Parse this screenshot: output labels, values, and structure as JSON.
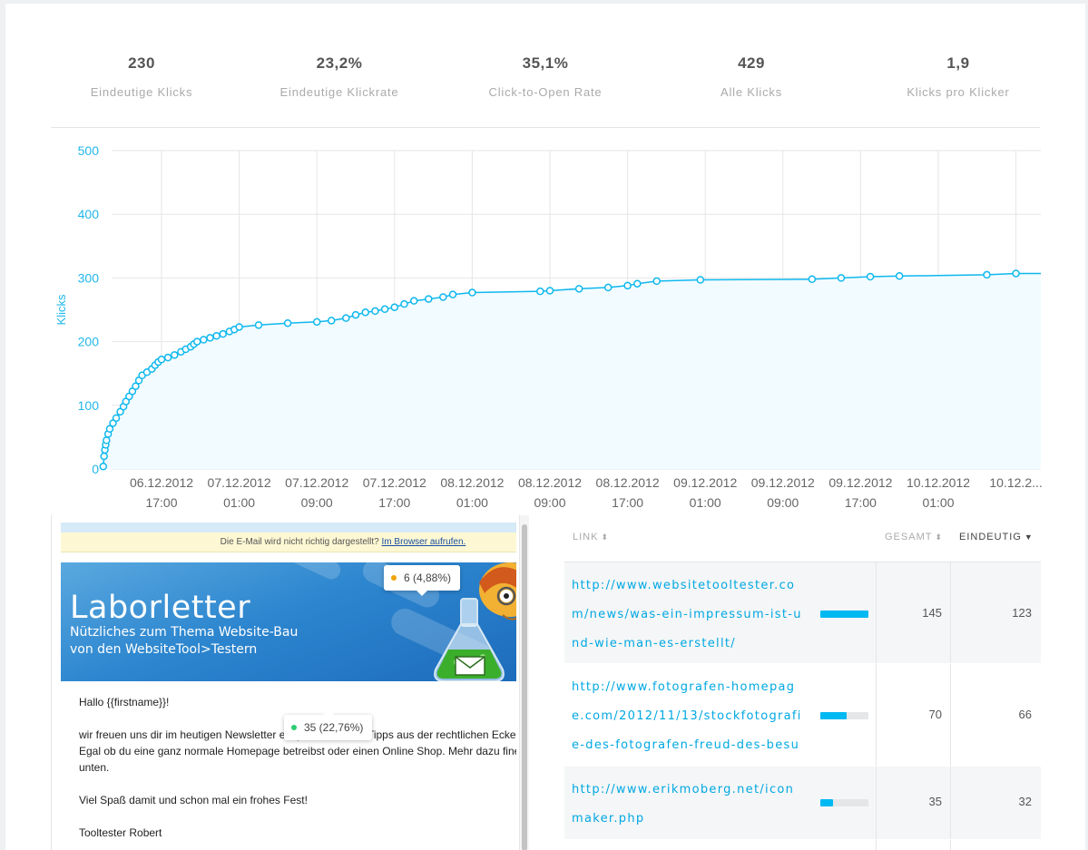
{
  "stats": [
    {
      "value": "230",
      "label": "Eindeutige Klicks"
    },
    {
      "value": "23,2%",
      "label": "Eindeutige Klickrate"
    },
    {
      "value": "35,1%",
      "label": "Click-to-Open Rate"
    },
    {
      "value": "429",
      "label": "Alle Klicks"
    },
    {
      "value": "1,9",
      "label": "Klicks pro Klicker"
    }
  ],
  "chart_data": {
    "type": "area",
    "ylabel": "Klicks",
    "ylim": [
      0,
      500
    ],
    "yticks": [
      0,
      100,
      200,
      300,
      400,
      500
    ],
    "x_start": "06.12.2012 11:00",
    "xticks": [
      {
        "date": "06.12.2012",
        "time": "17:00"
      },
      {
        "date": "07.12.2012",
        "time": "01:00"
      },
      {
        "date": "07.12.2012",
        "time": "09:00"
      },
      {
        "date": "07.12.2012",
        "time": "17:00"
      },
      {
        "date": "08.12.2012",
        "time": "01:00"
      },
      {
        "date": "08.12.2012",
        "time": "09:00"
      },
      {
        "date": "08.12.2012",
        "time": "17:00"
      },
      {
        "date": "09.12.2012",
        "time": "01:00"
      },
      {
        "date": "09.12.2012",
        "time": "09:00"
      },
      {
        "date": "09.12.2012",
        "time": "17:00"
      },
      {
        "date": "10.12.2012",
        "time": "01:00"
      },
      {
        "date": "10.12.2...",
        "time": ""
      }
    ],
    "series": [
      {
        "points": [
          [
            "06.12.2012 11:00",
            4
          ],
          [
            "06.12.2012 11:05",
            20
          ],
          [
            "06.12.2012 11:10",
            30
          ],
          [
            "06.12.2012 11:15",
            38
          ],
          [
            "06.12.2012 11:20",
            45
          ],
          [
            "06.12.2012 11:30",
            55
          ],
          [
            "06.12.2012 11:40",
            63
          ],
          [
            "06.12.2012 12:00",
            72
          ],
          [
            "06.12.2012 12:20",
            80
          ],
          [
            "06.12.2012 12:45",
            90
          ],
          [
            "06.12.2012 13:05",
            98
          ],
          [
            "06.12.2012 13:20",
            106
          ],
          [
            "06.12.2012 13:40",
            114
          ],
          [
            "06.12.2012 14:00",
            122
          ],
          [
            "06.12.2012 14:20",
            130
          ],
          [
            "06.12.2012 14:40",
            139
          ],
          [
            "06.12.2012 15:00",
            147
          ],
          [
            "06.12.2012 15:30",
            152
          ],
          [
            "06.12.2012 16:00",
            157
          ],
          [
            "06.12.2012 16:20",
            163
          ],
          [
            "06.12.2012 16:40",
            168
          ],
          [
            "06.12.2012 17:00",
            172
          ],
          [
            "06.12.2012 17:40",
            175
          ],
          [
            "06.12.2012 18:20",
            179
          ],
          [
            "06.12.2012 19:00",
            184
          ],
          [
            "06.12.2012 19:30",
            188
          ],
          [
            "06.12.2012 20:00",
            192
          ],
          [
            "06.12.2012 20:20",
            196
          ],
          [
            "06.12.2012 20:40",
            200
          ],
          [
            "06.12.2012 21:20",
            203
          ],
          [
            "06.12.2012 22:00",
            206
          ],
          [
            "06.12.2012 22:40",
            209
          ],
          [
            "06.12.2012 23:20",
            212
          ],
          [
            "07.12.2012 00:00",
            216
          ],
          [
            "07.12.2012 00:30",
            219
          ],
          [
            "07.12.2012 01:00",
            223
          ],
          [
            "07.12.2012 03:00",
            226
          ],
          [
            "07.12.2012 06:00",
            229
          ],
          [
            "07.12.2012 09:00",
            231
          ],
          [
            "07.12.2012 10:30",
            233
          ],
          [
            "07.12.2012 12:00",
            237
          ],
          [
            "07.12.2012 13:00",
            242
          ],
          [
            "07.12.2012 14:00",
            246
          ],
          [
            "07.12.2012 15:00",
            248
          ],
          [
            "07.12.2012 16:00",
            251
          ],
          [
            "07.12.2012 17:00",
            254
          ],
          [
            "07.12.2012 18:00",
            259
          ],
          [
            "07.12.2012 19:00",
            264
          ],
          [
            "07.12.2012 20:30",
            267
          ],
          [
            "07.12.2012 22:00",
            270
          ],
          [
            "07.12.2012 23:00",
            274
          ],
          [
            "08.12.2012 01:00",
            277
          ],
          [
            "08.12.2012 08:00",
            279
          ],
          [
            "08.12.2012 09:00",
            280
          ],
          [
            "08.12.2012 12:00",
            283
          ],
          [
            "08.12.2012 15:00",
            285
          ],
          [
            "08.12.2012 17:00",
            288
          ],
          [
            "08.12.2012 18:00",
            291
          ],
          [
            "08.12.2012 20:00",
            295
          ],
          [
            "09.12.2012 00:30",
            297
          ],
          [
            "09.12.2012 12:00",
            298
          ],
          [
            "09.12.2012 15:00",
            300
          ],
          [
            "09.12.2012 18:00",
            302
          ],
          [
            "09.12.2012 21:00",
            303
          ],
          [
            "10.12.2012 06:00",
            305
          ],
          [
            "10.12.2012 09:00",
            307
          ]
        ]
      }
    ]
  },
  "colors": {
    "accent": "#00b9f2",
    "line": "#0fb8ee",
    "area": "#f2fbff",
    "tooltip_green": "#2ecc71",
    "tooltip_orange": "#f0a30a"
  },
  "email": {
    "notice_text": "Die E-Mail wird nicht richtig dargestellt?",
    "notice_link": "Im Browser aufrufen.",
    "banner_title": "Laborletter",
    "banner_sub1": "Nützliches zum Thema Website-Bau",
    "banner_sub2": "von den WebsiteTool>Testern",
    "greeting": "Hallo {{firstname}}!",
    "para1_line1": "wir freuen uns dir im heutigen Newsletter ein paar nützliche Tipps aus der rechtlichen Ecke",
    "para1_line2": "Egal ob du eine ganz normale Homepage betreibst oder einen Online Shop. Mehr dazu fine",
    "para1_line3": "unten.",
    "para2": "Viel Spaß damit und schon mal ein frohes Fest!",
    "signature": "Tooltester Robert"
  },
  "tooltips": [
    {
      "text": "6 (4,88%)",
      "color": "orange"
    },
    {
      "text": "35 (22,76%)",
      "color": "green"
    }
  ],
  "links_table": {
    "headers": {
      "link": "LINK",
      "total": "GESAMT",
      "unique": "EINDEUTIG"
    },
    "sort_icon": "sort-icon",
    "active_sort_icon": "caret-down-icon",
    "rows": [
      {
        "url": "http://www.websitetooltester.com/news/was-ein-impressum-ist-und-wie-man-es-erstellt/",
        "total": "145",
        "unique": "123",
        "share": 1.0
      },
      {
        "url": "http://www.fotografen-homepage.com/2012/11/13/stockfotografie-des-fotografen-freud-des-besuchers-leid/",
        "total": "70",
        "unique": "66",
        "share": 0.54
      },
      {
        "url": "http://www.erikmoberg.net/iconmaker.php",
        "total": "35",
        "unique": "32",
        "share": 0.26
      }
    ]
  }
}
